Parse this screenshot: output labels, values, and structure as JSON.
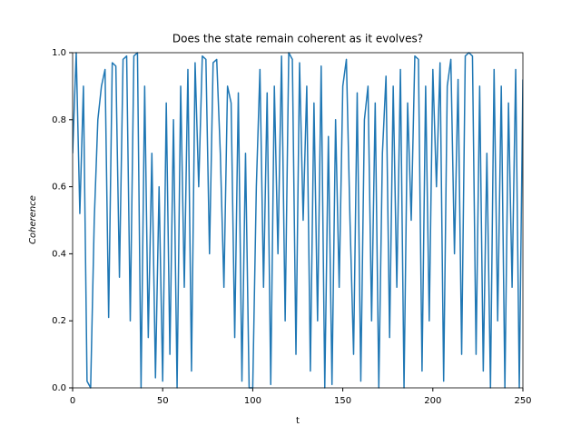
{
  "chart_data": {
    "type": "line",
    "title": "Does the state remain coherent as it evolves?",
    "x_label": "t",
    "y_label": "Coherence",
    "x": [
      0,
      2,
      4,
      6,
      8,
      10,
      12,
      14,
      16,
      18,
      20,
      22,
      24,
      26,
      28,
      30,
      32,
      34,
      36,
      38,
      40,
      42,
      44,
      46,
      48,
      50,
      52,
      54,
      56,
      58,
      60,
      62,
      64,
      66,
      68,
      70,
      72,
      74,
      76,
      78,
      80,
      82,
      84,
      86,
      88,
      90,
      92,
      94,
      96,
      98,
      100,
      102,
      104,
      106,
      108,
      110,
      112,
      114,
      116,
      118,
      120,
      122,
      124,
      126,
      128,
      130,
      132,
      134,
      136,
      138,
      140,
      142,
      144,
      146,
      148,
      150,
      152,
      154,
      156,
      158,
      160,
      162,
      164,
      166,
      168,
      170,
      172,
      174,
      176,
      178,
      180,
      182,
      184,
      186,
      188,
      190,
      192,
      194,
      196,
      198,
      200,
      202,
      204,
      206,
      208,
      210,
      212,
      214,
      216,
      218,
      220,
      222,
      224,
      226,
      228,
      230,
      232,
      234,
      236,
      238,
      240,
      242,
      244,
      246,
      248,
      250
    ],
    "series": [
      {
        "name": "Coherence",
        "color": "#1f77b4",
        "values": [
          0.7,
          1.0,
          0.52,
          0.9,
          0.02,
          0.0,
          0.5,
          0.8,
          0.9,
          0.95,
          0.21,
          0.97,
          0.96,
          0.33,
          0.98,
          0.99,
          0.2,
          0.99,
          1.0,
          0.0,
          0.9,
          0.15,
          0.7,
          0.03,
          0.6,
          0.02,
          0.85,
          0.1,
          0.8,
          0.0,
          0.9,
          0.3,
          0.95,
          0.05,
          0.97,
          0.6,
          0.99,
          0.98,
          0.4,
          0.97,
          0.98,
          0.7,
          0.3,
          0.9,
          0.85,
          0.15,
          0.88,
          0.02,
          0.7,
          0.0,
          0.0,
          0.6,
          0.95,
          0.3,
          0.88,
          0.01,
          0.9,
          0.4,
          0.99,
          0.2,
          1.0,
          0.98,
          0.1,
          0.97,
          0.5,
          0.9,
          0.05,
          0.85,
          0.2,
          0.96,
          0.0,
          0.75,
          0.01,
          0.8,
          0.3,
          0.9,
          0.98,
          0.5,
          0.1,
          0.88,
          0.02,
          0.8,
          0.9,
          0.2,
          0.85,
          0.0,
          0.7,
          0.93,
          0.15,
          0.9,
          0.3,
          0.95,
          0.0,
          0.85,
          0.5,
          0.99,
          0.98,
          0.05,
          0.9,
          0.2,
          0.95,
          0.6,
          0.97,
          0.02,
          0.9,
          0.98,
          0.4,
          0.92,
          0.1,
          0.99,
          1.0,
          0.99,
          0.1,
          0.9,
          0.05,
          0.7,
          0.0,
          0.95,
          0.2,
          0.9,
          0.0,
          0.85,
          0.3,
          0.95,
          0.0,
          0.92
        ]
      }
    ],
    "xlim": [
      0,
      250
    ],
    "xticks": [
      0,
      50,
      100,
      150,
      200,
      250
    ],
    "ylim": [
      0,
      1
    ],
    "yticks": [
      {
        "value": 0,
        "label": "0.0"
      },
      0.2,
      0.4,
      0.6,
      0.8,
      {
        "value": 1,
        "label": "1.0"
      }
    ]
  }
}
